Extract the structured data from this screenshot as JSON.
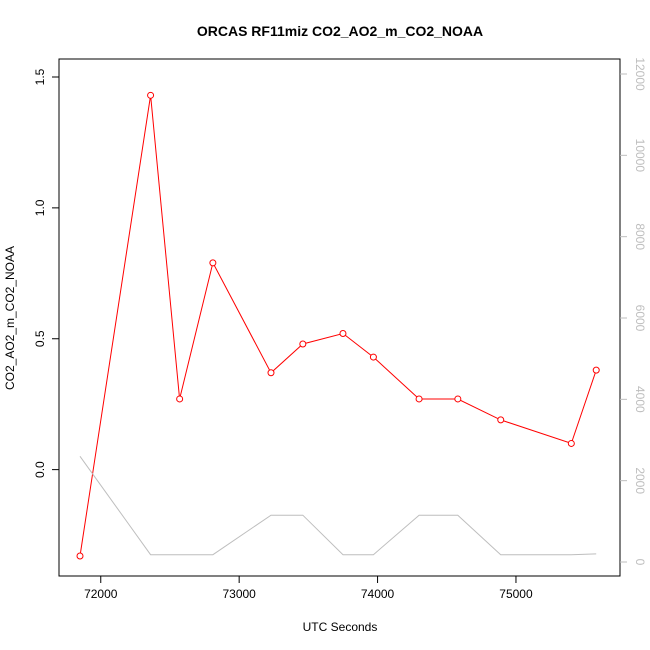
{
  "chart_data": {
    "type": "line",
    "title": "ORCAS RF11miz CO2_AO2_m_CO2_NOAA",
    "xlabel": "UTC Seconds",
    "ylabel": "CO2_AO2_m_CO2_NOAA",
    "xlim": [
      71850,
      75600
    ],
    "ylim": [
      -0.33,
      1.5
    ],
    "y2lim": [
      0,
      12000
    ],
    "x_ticks": [
      72000,
      73000,
      74000,
      75000
    ],
    "y_ticks": [
      0.0,
      0.5,
      1.0,
      1.5
    ],
    "y2_ticks": [
      0,
      2000,
      4000,
      6000,
      8000,
      10000,
      12000
    ],
    "x_tick_labels": [
      "72000",
      "73000",
      "74000",
      "75000"
    ],
    "y_tick_labels": [
      "0.0",
      "0.5",
      "1.0",
      "1.5"
    ],
    "y2_tick_labels": [
      "0",
      "2000",
      "4000",
      "6000",
      "8000",
      "10000",
      "12000"
    ],
    "grid": false,
    "series": [
      {
        "color": "#ff0000",
        "axis": "left",
        "markers": true,
        "x": [
          71850,
          72360,
          72570,
          72810,
          73230,
          73460,
          73750,
          73970,
          74300,
          74580,
          74890,
          75400,
          75580
        ],
        "y": [
          -0.33,
          1.43,
          0.27,
          0.79,
          0.37,
          0.48,
          0.52,
          0.43,
          0.27,
          0.27,
          0.19,
          0.1,
          0.38
        ]
      },
      {
        "color": "#bebebe",
        "axis": "right",
        "markers": false,
        "x": [
          71850,
          72360,
          72570,
          72810,
          73230,
          73460,
          73750,
          73970,
          74300,
          74580,
          74890,
          75400,
          75580
        ],
        "y": [
          2600,
          180,
          180,
          180,
          1150,
          1150,
          180,
          180,
          1150,
          1150,
          180,
          180,
          200
        ]
      }
    ]
  }
}
